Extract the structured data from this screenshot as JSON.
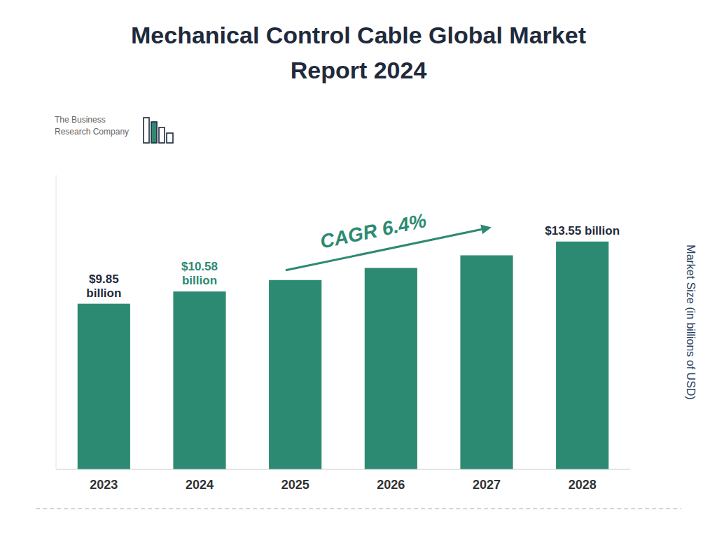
{
  "chart_data": {
    "type": "bar",
    "title": "Mechanical Control Cable Global Market",
    "subtitle": "Report 2024",
    "categories": [
      "2023",
      "2024",
      "2025",
      "2026",
      "2027",
      "2028"
    ],
    "values": [
      9.85,
      10.58,
      11.26,
      11.98,
      12.73,
      13.55
    ],
    "value_labels": [
      "$9.85\nbillion",
      "$10.58\nbillion",
      null,
      null,
      null,
      "$13.55 billion"
    ],
    "data_labels": true,
    "color": "#2d8a72",
    "y_label": "Market Size (in billions of USD)",
    "ylim": [
      0,
      17.5
    ],
    "tick_labels": "x",
    "grid": false,
    "annotations": [
      {
        "text": "CAGR 6.4%"
      },
      {
        "text": "The Business\nResearch Company"
      }
    ]
  }
}
